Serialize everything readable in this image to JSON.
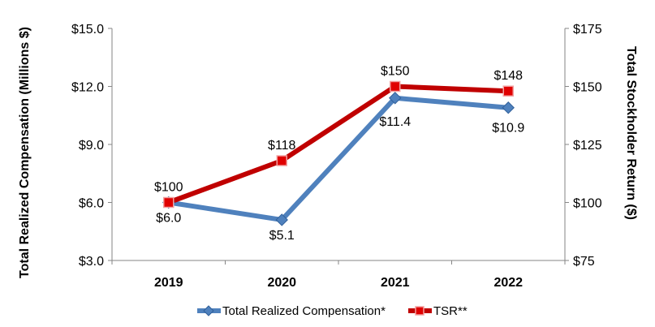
{
  "chart_data": {
    "type": "line",
    "categories": [
      "2019",
      "2020",
      "2021",
      "2022"
    ],
    "ylabel_left": "Total Realized Compensation (Millions $)",
    "ylabel_right": "Total Stockholder Return ($)",
    "ylim_left": [
      3.0,
      15.0
    ],
    "ylim_right": [
      75,
      175
    ],
    "left_ticks": [
      "$3.0",
      "$6.0",
      "$9.0",
      "$12.0",
      "$15.0"
    ],
    "left_tick_values": [
      3,
      6,
      9,
      12,
      15
    ],
    "right_ticks": [
      "$75",
      "$100",
      "$125",
      "$150",
      "$175"
    ],
    "right_tick_values": [
      75,
      100,
      125,
      150,
      175
    ],
    "series": [
      {
        "name": "Total Realized Compensation*",
        "axis": "left",
        "values": [
          6.0,
          5.1,
          11.4,
          10.9
        ],
        "labels": [
          "$6.0",
          "$5.1",
          "$11.4",
          "$10.9"
        ],
        "color": "#4F81BD",
        "marker": "diamond"
      },
      {
        "name": "TSR**",
        "axis": "right",
        "values": [
          100,
          118,
          150,
          148
        ],
        "labels": [
          "$100",
          "$118",
          "$150",
          "$148"
        ],
        "color": "#C00000",
        "marker": "square"
      }
    ],
    "legend_position": "bottom"
  }
}
